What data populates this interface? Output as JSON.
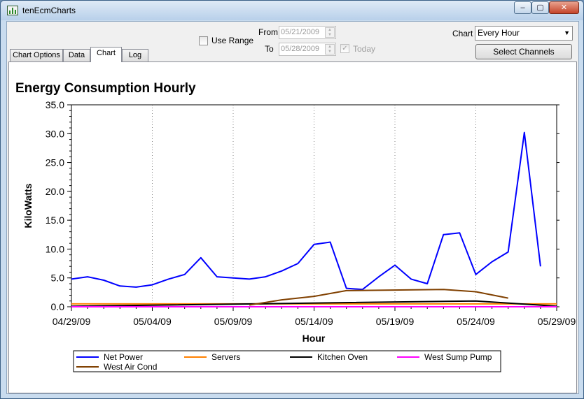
{
  "window": {
    "title": "tenEcmCharts",
    "minimize": "–",
    "maximize": "▢",
    "close": "✕"
  },
  "tabs": [
    "Chart Options",
    "Data",
    "Chart",
    "Log"
  ],
  "active_tab": "Chart",
  "controls": {
    "use_range_label": "Use Range",
    "use_range_checked": false,
    "from_label": "From",
    "from_value": "05/21/2009",
    "to_label": "To",
    "to_value": "05/28/2009",
    "today_label": "Today",
    "today_checked": true,
    "chart_label": "Chart",
    "chart_value": "Every Hour",
    "select_channels": "Select Channels"
  },
  "chart_data": {
    "type": "line",
    "title": "Energy Consumption Hourly",
    "xlabel": "Hour",
    "ylabel": "KiloWatts",
    "ylim": [
      0,
      35
    ],
    "yticks": [
      "0.0",
      "5.0",
      "10.0",
      "15.0",
      "20.0",
      "25.0",
      "30.0",
      "35.0"
    ],
    "xlim": [
      "2009-04-29",
      "2009-05-29"
    ],
    "xticks": [
      "04/29/09",
      "05/04/09",
      "05/09/09",
      "05/14/09",
      "05/19/09",
      "05/24/09",
      "05/29/09"
    ],
    "grid": "dotted vertical",
    "legend_position": "bottom",
    "series": [
      {
        "name": "Net Power",
        "color": "#0000ff",
        "x": [
          "2009-04-29",
          "2009-04-30",
          "2009-05-01",
          "2009-05-02",
          "2009-05-03",
          "2009-05-04",
          "2009-05-05",
          "2009-05-06",
          "2009-05-07",
          "2009-05-08",
          "2009-05-09",
          "2009-05-10",
          "2009-05-11",
          "2009-05-12",
          "2009-05-13",
          "2009-05-14",
          "2009-05-15",
          "2009-05-16",
          "2009-05-17",
          "2009-05-18",
          "2009-05-19",
          "2009-05-20",
          "2009-05-21",
          "2009-05-22",
          "2009-05-23",
          "2009-05-24",
          "2009-05-25",
          "2009-05-26",
          "2009-05-27",
          "2009-05-28"
        ],
        "values": [
          4.8,
          5.2,
          4.6,
          3.6,
          3.4,
          3.8,
          4.8,
          5.6,
          8.5,
          5.2,
          5.0,
          4.8,
          5.2,
          6.2,
          7.5,
          10.8,
          11.2,
          3.2,
          3.0,
          5.2,
          7.2,
          4.8,
          4.0,
          12.5,
          12.8,
          5.6,
          7.8,
          9.5,
          30.2,
          7.0
        ]
      },
      {
        "name": "Servers",
        "color": "#ff8000",
        "x": [
          "2009-04-29",
          "2009-05-14",
          "2009-05-29"
        ],
        "values": [
          0.5,
          0.5,
          0.5
        ]
      },
      {
        "name": "Kitchen Oven",
        "color": "#000000",
        "x": [
          "2009-04-29",
          "2009-05-24",
          "2009-05-29"
        ],
        "values": [
          0.1,
          1.0,
          0.1
        ]
      },
      {
        "name": "West Sump Pump",
        "color": "#ff00ff",
        "x": [
          "2009-04-29",
          "2009-05-29"
        ],
        "values": [
          0.0,
          0.0
        ]
      },
      {
        "name": "West Air Cond",
        "color": "#804000",
        "x": [
          "2009-05-10",
          "2009-05-12",
          "2009-05-14",
          "2009-05-16",
          "2009-05-22",
          "2009-05-24",
          "2009-05-26"
        ],
        "values": [
          0.3,
          1.2,
          1.8,
          2.8,
          3.0,
          2.6,
          1.5
        ]
      }
    ]
  }
}
